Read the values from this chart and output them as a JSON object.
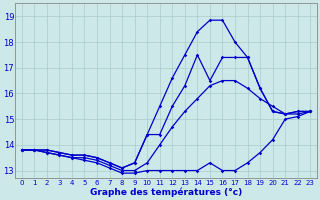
{
  "title": "Graphe des températures (°c)",
  "bg_color": "#cce8e8",
  "grid_color": "#aacccc",
  "line_color": "#0000cc",
  "x_labels": [
    "0",
    "1",
    "2",
    "3",
    "4",
    "5",
    "6",
    "7",
    "8",
    "9",
    "10",
    "11",
    "12",
    "13",
    "14",
    "15",
    "16",
    "17",
    "18",
    "19",
    "20",
    "21",
    "22",
    "23"
  ],
  "ylim": [
    12.7,
    19.5
  ],
  "yticks": [
    13,
    14,
    15,
    16,
    17,
    18,
    19
  ],
  "series": {
    "line1_max": [
      13.8,
      13.8,
      13.8,
      13.7,
      13.6,
      13.6,
      13.5,
      13.3,
      13.1,
      13.3,
      14.4,
      15.5,
      16.6,
      17.5,
      18.4,
      18.85,
      18.85,
      18.0,
      17.4,
      16.2,
      15.3,
      15.2,
      15.3,
      15.3
    ],
    "line2_actual": [
      13.8,
      13.8,
      13.8,
      13.7,
      13.6,
      13.6,
      13.5,
      13.3,
      13.1,
      13.3,
      14.4,
      14.4,
      15.5,
      16.3,
      17.5,
      16.5,
      17.4,
      17.4,
      17.4,
      16.2,
      15.3,
      15.2,
      15.3,
      15.3
    ],
    "line3_avg": [
      13.8,
      13.8,
      13.7,
      13.6,
      13.5,
      13.5,
      13.4,
      13.2,
      13.0,
      13.0,
      13.3,
      14.0,
      14.7,
      15.3,
      15.8,
      16.3,
      16.5,
      16.5,
      16.2,
      15.8,
      15.5,
      15.2,
      15.2,
      15.3
    ],
    "line4_min": [
      13.8,
      13.8,
      13.7,
      13.6,
      13.5,
      13.4,
      13.3,
      13.1,
      12.9,
      12.9,
      13.0,
      13.0,
      13.0,
      13.0,
      13.0,
      13.3,
      13.0,
      13.0,
      13.3,
      13.7,
      14.2,
      15.0,
      15.1,
      15.3
    ]
  }
}
